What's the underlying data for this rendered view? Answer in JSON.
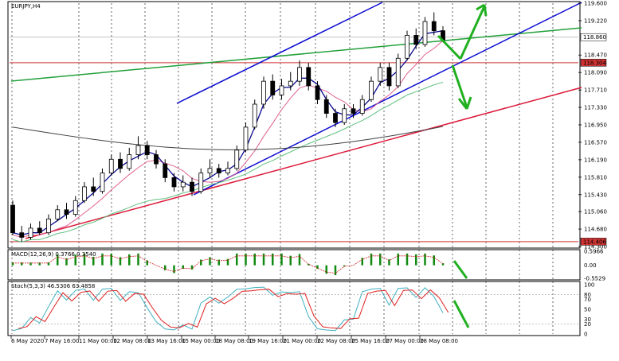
{
  "chart_data": {
    "type": "candlestick",
    "symbol_title": "EURJPY,H4",
    "price_axis": {
      "ymin": 114.3,
      "ymax": 119.6,
      "ticks": [
        "119.600",
        "119.220",
        "118.470",
        "118.090",
        "117.710",
        "117.330",
        "116.950",
        "116.570",
        "116.190",
        "115.810",
        "115.430",
        "115.060",
        "114.680",
        "114.300"
      ],
      "tick_values": [
        119.6,
        119.22,
        118.47,
        118.09,
        117.71,
        117.33,
        116.95,
        116.57,
        116.19,
        115.81,
        115.43,
        115.06,
        114.68,
        114.3
      ],
      "current_price": "118.860",
      "current_price_value": 118.86,
      "resistance_label": "118.304",
      "resistance_value": 118.304,
      "support_label": "114.406",
      "support_value": 114.406
    },
    "time_axis": {
      "labels": [
        "6 May 2020",
        "7 May 16:00",
        "11 May 00:00",
        "12 May 08:00",
        "13 May 16:00",
        "15 May 00:00",
        "18 May 08:00",
        "19 May 16:00",
        "21 May 00:00",
        "22 May 08:00",
        "25 May 16:00",
        "27 May 00:00",
        "28 May 08:00"
      ]
    },
    "candles": [
      [
        115.2,
        114.6,
        115.3,
        114.55
      ],
      [
        114.6,
        114.5,
        114.75,
        114.4
      ],
      [
        114.5,
        114.7,
        114.8,
        114.45
      ],
      [
        114.7,
        114.6,
        114.85,
        114.55
      ],
      [
        114.6,
        114.9,
        115.0,
        114.55
      ],
      [
        114.9,
        115.1,
        115.2,
        114.85
      ],
      [
        115.1,
        115.0,
        115.25,
        114.9
      ],
      [
        115.0,
        115.3,
        115.4,
        114.95
      ],
      [
        115.3,
        115.6,
        115.7,
        115.25
      ],
      [
        115.6,
        115.5,
        115.8,
        115.4
      ],
      [
        115.5,
        115.9,
        116.0,
        115.45
      ],
      [
        115.9,
        116.2,
        116.3,
        115.85
      ],
      [
        116.2,
        116.0,
        116.35,
        115.9
      ],
      [
        116.0,
        116.3,
        116.45,
        115.95
      ],
      [
        116.3,
        116.5,
        116.7,
        116.2
      ],
      [
        116.5,
        116.3,
        116.6,
        116.2
      ],
      [
        116.3,
        116.1,
        116.4,
        116.0
      ],
      [
        116.1,
        115.8,
        116.2,
        115.7
      ],
      [
        115.8,
        115.6,
        115.9,
        115.5
      ],
      [
        115.6,
        115.7,
        115.85,
        115.5
      ],
      [
        115.7,
        115.5,
        115.8,
        115.4
      ],
      [
        115.5,
        115.9,
        116.0,
        115.45
      ],
      [
        115.9,
        116.0,
        116.2,
        115.8
      ],
      [
        116.0,
        115.9,
        116.1,
        115.8
      ],
      [
        115.9,
        116.0,
        116.15,
        115.85
      ],
      [
        116.0,
        116.4,
        116.5,
        115.95
      ],
      [
        116.4,
        116.9,
        117.0,
        116.35
      ],
      [
        116.9,
        117.4,
        117.5,
        116.85
      ],
      [
        117.4,
        117.9,
        118.0,
        117.3
      ],
      [
        117.9,
        117.6,
        118.05,
        117.5
      ],
      [
        117.6,
        117.8,
        117.95,
        117.5
      ],
      [
        117.8,
        117.9,
        118.1,
        117.7
      ],
      [
        117.9,
        118.2,
        118.35,
        117.8
      ],
      [
        118.2,
        117.8,
        118.3,
        117.7
      ],
      [
        117.8,
        117.5,
        117.9,
        117.4
      ],
      [
        117.5,
        117.2,
        117.6,
        117.1
      ],
      [
        117.2,
        117.0,
        117.3,
        116.9
      ],
      [
        117.0,
        117.3,
        117.4,
        116.95
      ],
      [
        117.3,
        117.2,
        117.4,
        117.1
      ],
      [
        117.2,
        117.5,
        117.6,
        117.15
      ],
      [
        117.5,
        117.9,
        118.0,
        117.45
      ],
      [
        117.9,
        118.2,
        118.3,
        117.8
      ],
      [
        118.2,
        117.8,
        118.3,
        117.7
      ],
      [
        117.8,
        118.4,
        118.5,
        117.75
      ],
      [
        118.4,
        118.9,
        119.0,
        118.35
      ],
      [
        118.9,
        118.7,
        119.05,
        118.6
      ],
      [
        118.7,
        119.2,
        119.3,
        118.65
      ],
      [
        119.2,
        119.0,
        119.4,
        118.9
      ],
      [
        119.0,
        118.8,
        119.1,
        118.75
      ]
    ],
    "indicators": {
      "macd": {
        "label": "MACD(12,26,9) 0.3766 0.3540",
        "ticks": [
          "0.5966",
          "0.00",
          "-0.5529"
        ],
        "tick_values": [
          0.5966,
          0.0,
          -0.5529
        ]
      },
      "stochastic": {
        "label": "Stoch(5,3,3) 46.5306 63.4858",
        "ticks": [
          "100",
          "80",
          "70",
          "50",
          "30",
          "20",
          "0"
        ],
        "tick_values": [
          100,
          80,
          70,
          50,
          30,
          20,
          0
        ]
      }
    },
    "colors": {
      "channel_blue": "#0a0ad2",
      "long_green": "#22a03a",
      "trend_red": "#dc1a3a",
      "level_red": "#cc3333",
      "ma_fast": "#0a0a90",
      "ma_pink": "#e06090",
      "ma_green": "#60c080",
      "ma_slow": "#404040",
      "macd_hist": "#0f8a0f",
      "macd_signal": "#d02020",
      "stoch_main": "#40b0c0",
      "stoch_signal": "#e02020",
      "arrow": "#20b020"
    }
  }
}
